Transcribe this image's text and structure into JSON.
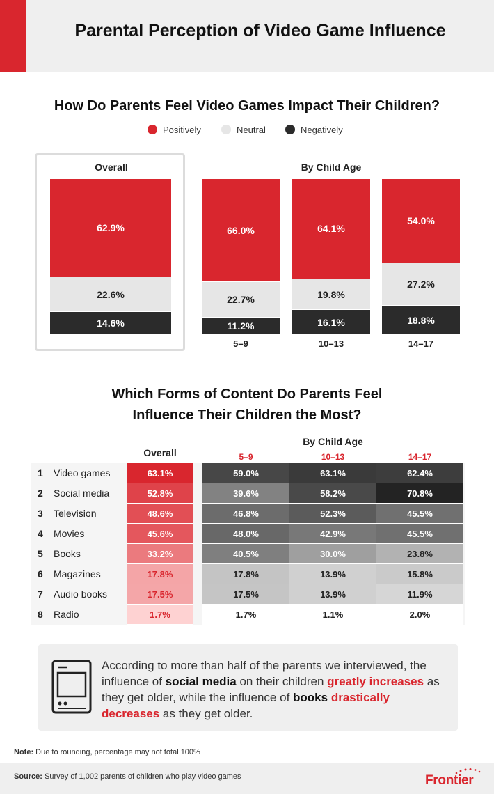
{
  "title": "Parental Perception of Video Game Influence",
  "section1": {
    "title": "How Do Parents Feel Video Games Impact Their Children?",
    "overall_label": "Overall",
    "by_age_label": "By Child Age"
  },
  "section2": {
    "title_line1": "Which Forms of Content Do Parents Feel",
    "title_line2": "Influence Their Children the Most?",
    "overall_label": "Overall",
    "by_age_label": "By Child Age",
    "age_groups": [
      "5–9",
      "10–13",
      "14–17"
    ]
  },
  "callout": {
    "t1": "According to more than half of the parents we interviewed, the influence of ",
    "b1": "social media",
    "t2": " on their children ",
    "r1": "greatly increases",
    "t3": " as they get older, while the influence of ",
    "b2": "books",
    "t4": " ",
    "r2": "drastically decreases",
    "t5": " as they get older."
  },
  "note": {
    "label": "Note:",
    "text": " Due to rounding, percentage may not total 100%"
  },
  "source": {
    "label": "Source:",
    "text": " Survey of 1,002 parents of children who play video games"
  },
  "logo": "Frontier",
  "colors": {
    "accent": "#d9262e",
    "neutral": "#e6e6e6",
    "negative": "#2b2b2b"
  },
  "chart_data": [
    {
      "type": "bar",
      "title": "How Do Parents Feel Video Games Impact Their Children?",
      "stacked": true,
      "legend_placement": "top-center",
      "categories": [
        "Overall",
        "5–9",
        "10–13",
        "14–17"
      ],
      "series": [
        {
          "name": "Positively",
          "color": "#d9262e",
          "values": [
            62.9,
            66.0,
            64.1,
            54.0
          ],
          "labels": [
            "62.9%",
            "66.0%",
            "64.1%",
            "54.0%"
          ]
        },
        {
          "name": "Neutral",
          "color": "#e6e6e6",
          "values": [
            22.6,
            22.7,
            19.8,
            27.2
          ],
          "labels": [
            "22.6%",
            "22.7%",
            "19.8%",
            "27.2%"
          ]
        },
        {
          "name": "Negatively",
          "color": "#2b2b2b",
          "values": [
            14.6,
            11.2,
            16.1,
            18.8
          ],
          "labels": [
            "14.6%",
            "11.2%",
            "16.1%",
            "18.8%"
          ]
        }
      ]
    },
    {
      "type": "heatmap",
      "title": "Which Forms of Content Do Parents Feel Influence Their Children the Most?",
      "columns": [
        "Overall",
        "5–9",
        "10–13",
        "14–17"
      ],
      "rows": [
        {
          "rank": "1",
          "name": "Video games",
          "values": [
            63.1,
            59.0,
            63.1,
            62.4
          ],
          "labels": [
            "63.1%",
            "59.0%",
            "63.1%",
            "62.4%"
          ]
        },
        {
          "rank": "2",
          "name": "Social media",
          "values": [
            52.8,
            39.6,
            58.2,
            70.8
          ],
          "labels": [
            "52.8%",
            "39.6%",
            "58.2%",
            "70.8%"
          ]
        },
        {
          "rank": "3",
          "name": "Television",
          "values": [
            48.6,
            46.8,
            52.3,
            45.5
          ],
          "labels": [
            "48.6%",
            "46.8%",
            "52.3%",
            "45.5%"
          ]
        },
        {
          "rank": "4",
          "name": "Movies",
          "values": [
            45.6,
            48.0,
            42.9,
            45.5
          ],
          "labels": [
            "45.6%",
            "48.0%",
            "42.9%",
            "45.5%"
          ]
        },
        {
          "rank": "5",
          "name": "Books",
          "values": [
            33.2,
            40.5,
            30.0,
            23.8
          ],
          "labels": [
            "33.2%",
            "40.5%",
            "30.0%",
            "23.8%"
          ]
        },
        {
          "rank": "6",
          "name": "Magazines",
          "values": [
            17.8,
            17.8,
            13.9,
            15.8
          ],
          "labels": [
            "17.8%",
            "17.8%",
            "13.9%",
            "15.8%"
          ]
        },
        {
          "rank": "7",
          "name": "Audio books",
          "values": [
            17.5,
            17.5,
            13.9,
            11.9
          ],
          "labels": [
            "17.5%",
            "17.5%",
            "13.9%",
            "11.9%"
          ]
        },
        {
          "rank": "8",
          "name": "Radio",
          "values": [
            1.7,
            1.7,
            1.1,
            2.0
          ],
          "labels": [
            "1.7%",
            "1.7%",
            "1.1%",
            "2.0%"
          ]
        }
      ]
    }
  ]
}
